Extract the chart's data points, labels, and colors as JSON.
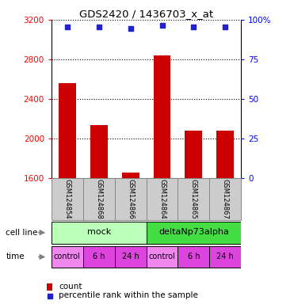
{
  "title": "GDS2420 / 1436703_x_at",
  "samples": [
    "GSM124854",
    "GSM124868",
    "GSM124866",
    "GSM124864",
    "GSM124865",
    "GSM124867"
  ],
  "counts": [
    2560,
    2130,
    1650,
    2840,
    2080,
    2080
  ],
  "percentile_ranks_y": [
    3130,
    3130,
    3110,
    3140,
    3130,
    3130
  ],
  "ylim_left": [
    1600,
    3200
  ],
  "ylim_right": [
    0,
    100
  ],
  "yticks_left": [
    1600,
    2000,
    2400,
    2800,
    3200
  ],
  "yticks_right": [
    0,
    25,
    50,
    75,
    100
  ],
  "bar_color": "#cc0000",
  "dot_color": "#2222cc",
  "cell_line_labels": [
    "mock",
    "deltaNp73alpha"
  ],
  "cell_line_spans": [
    [
      0,
      3
    ],
    [
      3,
      6
    ]
  ],
  "cell_line_colors_light": [
    "#bbffbb",
    "#44dd44"
  ],
  "time_labels": [
    "control",
    "6 h",
    "24 h",
    "control",
    "6 h",
    "24 h"
  ],
  "time_colors": [
    "#ee88ee",
    "#dd44dd",
    "#dd44dd",
    "#ee88ee",
    "#dd44dd",
    "#dd44dd"
  ],
  "background_color": "#ffffff",
  "label_area_color": "#cccccc",
  "legend_count_color": "#cc0000",
  "legend_dot_color": "#2222cc",
  "grid_dotted_color": "#555555"
}
